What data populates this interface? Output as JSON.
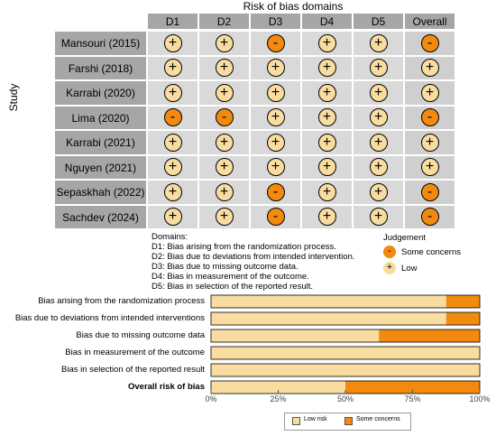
{
  "traffic_light": {
    "title": "Risk of bias domains",
    "y_label": "Study",
    "columns": [
      "D1",
      "D2",
      "D3",
      "D4",
      "D5",
      "Overall"
    ],
    "studies": [
      {
        "name": "Mansouri (2015)",
        "judgements": [
          "low",
          "low",
          "some",
          "low",
          "low",
          "some"
        ]
      },
      {
        "name": "Farshi (2018)",
        "judgements": [
          "low",
          "low",
          "low",
          "low",
          "low",
          "low"
        ]
      },
      {
        "name": "Karrabi (2020)",
        "judgements": [
          "low",
          "low",
          "low",
          "low",
          "low",
          "low"
        ]
      },
      {
        "name": "Lima (2020)",
        "judgements": [
          "some",
          "some",
          "low",
          "low",
          "low",
          "some"
        ]
      },
      {
        "name": "Karrabi (2021)",
        "judgements": [
          "low",
          "low",
          "low",
          "low",
          "low",
          "low"
        ]
      },
      {
        "name": "Nguyen (2021)",
        "judgements": [
          "low",
          "low",
          "low",
          "low",
          "low",
          "low"
        ]
      },
      {
        "name": "Sepaskhah (2022)",
        "judgements": [
          "low",
          "low",
          "some",
          "low",
          "low",
          "some"
        ]
      },
      {
        "name": "Sachdev (2024)",
        "judgements": [
          "low",
          "low",
          "some",
          "low",
          "low",
          "some"
        ]
      }
    ],
    "symbols": {
      "low": "+",
      "some": "-"
    },
    "domains_title": "Domains:",
    "domains": [
      "D1: Bias arising from the randomization process.",
      "D2: Bias due to deviations from intended intervention.",
      "D3: Bias due to missing outcome data.",
      "D4: Bias in measurement of the outcome.",
      "D5: Bias in selection of the reported result."
    ],
    "judgement_title": "Judgement",
    "judgement_legend": [
      {
        "key": "some",
        "label": "Some concerns"
      },
      {
        "key": "low",
        "label": "Low"
      }
    ]
  },
  "chart_data": {
    "type": "bar",
    "orientation": "horizontal-stacked",
    "categories": [
      "Bias arising from the randomization process",
      "Bias due to deviations from intended interventions",
      "Bias due to missing outcome data",
      "Bias in measurement of the outcome",
      "Bias in selection of the reported result",
      "Overall risk of bias"
    ],
    "bold_category": "Overall risk of bias",
    "series": [
      {
        "name": "Low risk",
        "values": [
          87.5,
          87.5,
          62.5,
          100,
          100,
          50
        ]
      },
      {
        "name": "Some concerns",
        "values": [
          12.5,
          12.5,
          37.5,
          0,
          0,
          50
        ]
      }
    ],
    "xlim": [
      0,
      100
    ],
    "xticks": [
      "0%",
      "25%",
      "50%",
      "75%",
      "100%"
    ],
    "legend_position": "bottom"
  },
  "colors": {
    "low": "#f9dda0",
    "some": "#f28a10",
    "panel": "#d9d9d9",
    "header": "#a6a6a6"
  }
}
